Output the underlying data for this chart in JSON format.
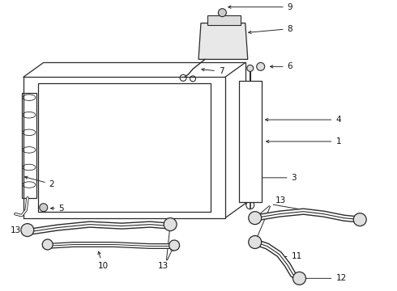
{
  "bg_color": "#f5f5f5",
  "line_color": "#2a2a2a",
  "label_color": "#111111",
  "fs": 7.5,
  "figsize": [
    4.9,
    3.6
  ],
  "dpi": 100
}
